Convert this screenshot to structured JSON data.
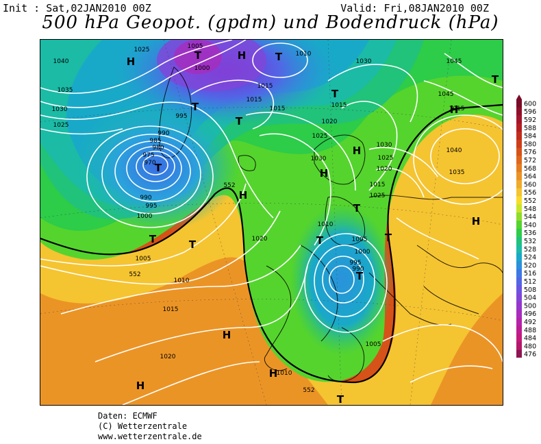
{
  "header": {
    "init": "Init : Sat,02JAN2010 00Z",
    "valid": "Valid: Fri,08JAN2010 00Z",
    "title": "500 hPa Geopot. (gpdm) und Bodendruck (hPa)"
  },
  "legend": {
    "values": [
      "600",
      "596",
      "592",
      "588",
      "584",
      "580",
      "576",
      "572",
      "568",
      "564",
      "560",
      "556",
      "552",
      "548",
      "544",
      "540",
      "536",
      "532",
      "528",
      "524",
      "520",
      "516",
      "512",
      "508",
      "504",
      "500",
      "496",
      "492",
      "488",
      "484",
      "480",
      "476"
    ],
    "colors": [
      "#7a0a28",
      "#8e0f2a",
      "#a3152b",
      "#b41e23",
      "#c22c1c",
      "#cd3e18",
      "#d65218",
      "#de671b",
      "#e57d20",
      "#eb9426",
      "#f0ab2c",
      "#f5c431",
      "#f7dc2a",
      "#c7e62a",
      "#8fdc2a",
      "#55d42e",
      "#2dcc49",
      "#21c27a",
      "#1bbba6",
      "#19a9c8",
      "#2a92dc",
      "#3d79e4",
      "#5266e6",
      "#6a54e2",
      "#8146d8",
      "#9638cc",
      "#a82cbd",
      "#b523a9",
      "#bd1c92",
      "#c21a7c",
      "#b41868",
      "#8e1452"
    ]
  },
  "map": {
    "isobar_labels": [
      "1040",
      "1035",
      "1030",
      "1025",
      "1025",
      "1005",
      "1000",
      "995",
      "990",
      "985",
      "980",
      "975",
      "970",
      "965",
      "990",
      "995",
      "1000",
      "1005",
      "1010",
      "1015",
      "1020",
      "1020",
      "1015",
      "1015",
      "1015",
      "1010",
      "1015",
      "1020",
      "1025",
      "1030",
      "1030",
      "1025",
      "1020",
      "1015",
      "1010",
      "1005",
      "1000",
      "995",
      "990",
      "1005",
      "1030",
      "1045",
      "1045",
      "1040",
      "1035",
      "1025",
      "1010",
      "1020",
      "1015",
      "1010"
    ],
    "geopot_labels": [
      "552",
      "552",
      "552"
    ],
    "high_markers": [
      "H",
      "H",
      "H",
      "H",
      "H",
      "H",
      "H",
      "H",
      "H",
      "H"
    ],
    "low_markers": [
      "T",
      "T",
      "T",
      "T",
      "T",
      "T",
      "T",
      "T",
      "T",
      "T",
      "T",
      "T",
      "T",
      "T",
      "T"
    ]
  },
  "credits": {
    "line1": "Daten: ECMWF",
    "line2": "(C) Wetterzentrale",
    "line3": "www.wetterzentrale.de"
  }
}
